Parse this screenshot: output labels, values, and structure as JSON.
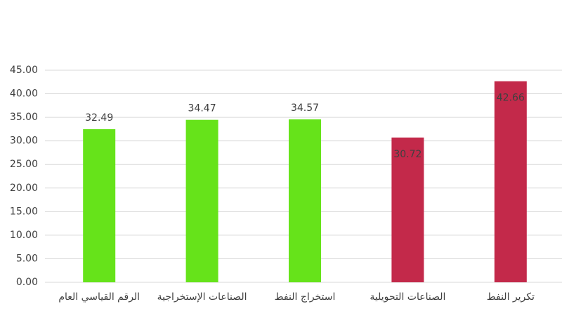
{
  "chart_data": {
    "type": "bar",
    "categories": [
      "الرقم القياسي العام",
      "الصناعات الإستخراجية",
      "استخراج النفط",
      "الصناعات التحويلية",
      "تكرير النفط"
    ],
    "values": [
      32.49,
      34.47,
      34.57,
      30.72,
      42.66
    ],
    "colors": [
      "#66e31a",
      "#66e31a",
      "#66e31a",
      "#c3294a",
      "#c3294a"
    ],
    "value_label_position": [
      "outside",
      "outside",
      "outside",
      "inside",
      "inside"
    ],
    "ylim": [
      0,
      45
    ],
    "yticks": [
      {
        "value": 0,
        "label": "0.00"
      },
      {
        "value": 5,
        "label": "5.00"
      },
      {
        "value": 10,
        "label": "10.00"
      },
      {
        "value": 15,
        "label": "15.00"
      },
      {
        "value": 20,
        "label": "20.00"
      },
      {
        "value": 25,
        "label": "25.00"
      },
      {
        "value": 30,
        "label": "30.00"
      },
      {
        "value": 35,
        "label": "35.00"
      },
      {
        "value": 40,
        "label": "40.00"
      },
      {
        "value": 45,
        "label": "45.00"
      }
    ],
    "grid": true
  }
}
